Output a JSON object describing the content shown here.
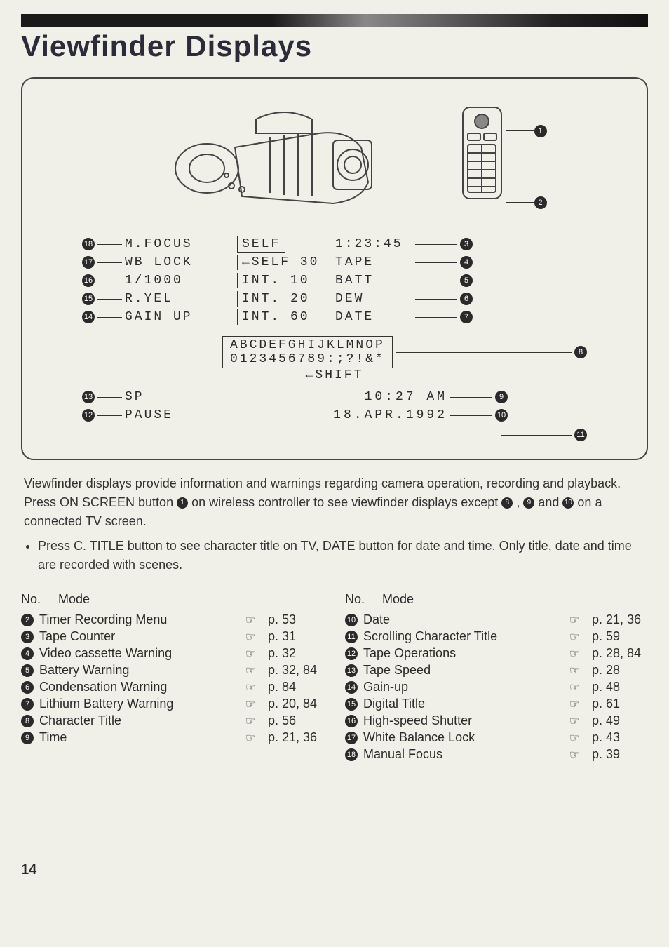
{
  "title": "Viewfinder Displays",
  "osd": {
    "rows": [
      {
        "left_num": "18",
        "left": "M.FOCUS",
        "mid": "SELF",
        "right": "1:23:45",
        "right_num": "3"
      },
      {
        "left_num": "17",
        "left": "WB LOCK",
        "mid": "←SELF 30",
        "right": "TAPE",
        "right_num": "4"
      },
      {
        "left_num": "16",
        "left": "1/1000",
        "mid": "INT. 10",
        "right": "BATT",
        "right_num": "5"
      },
      {
        "left_num": "15",
        "left": "R.YEL",
        "mid": "INT. 20",
        "right": "DEW",
        "right_num": "6"
      },
      {
        "left_num": "14",
        "left": "GAIN UP",
        "mid": "INT. 60",
        "right": "DATE",
        "right_num": "7"
      }
    ],
    "chars1": "ABCDEFGHIJKLMNOP",
    "chars2": "0123456789:;?!&*",
    "shift": "←SHIFT",
    "bottom": [
      {
        "left_num": "13",
        "left": "SP",
        "right": "10:27 AM",
        "right_num": "9"
      },
      {
        "left_num": "12",
        "left": "PAUSE",
        "right": "18.APR.1992",
        "right_num": "10"
      }
    ],
    "char_right_num": "8",
    "bottom_right_num": "11",
    "remote_num_1": "1",
    "remote_num_2": "2"
  },
  "desc": {
    "p1a": "Viewfinder displays provide information and warnings regarding camera operation, recording and playback. Press ON SCREEN button ",
    "p1b": " on wireless controller to see viewfinder displays except ",
    "p1c": ", ",
    "p1d": " and ",
    "p1e": " on a connected TV screen.",
    "b1": "1",
    "b8": "8",
    "b9": "9",
    "b10": "10",
    "p2": "Press C. TITLE button to see character title on TV, DATE button for date and time. Only title, date and time are recorded with scenes."
  },
  "table_head": {
    "no": "No.",
    "mode": "Mode"
  },
  "left_items": [
    {
      "n": "2",
      "label": "Timer Recording Menu",
      "page": "p. 53"
    },
    {
      "n": "3",
      "label": "Tape Counter",
      "page": "p. 31"
    },
    {
      "n": "4",
      "label": "Video cassette Warning",
      "page": "p. 32"
    },
    {
      "n": "5",
      "label": "Battery Warning",
      "page": "p. 32, 84"
    },
    {
      "n": "6",
      "label": "Condensation Warning",
      "page": "p. 84"
    },
    {
      "n": "7",
      "label": "Lithium Battery Warning",
      "page": "p. 20, 84"
    },
    {
      "n": "8",
      "label": "Character Title",
      "page": "p. 56"
    },
    {
      "n": "9",
      "label": "Time",
      "page": "p. 21, 36"
    }
  ],
  "right_items": [
    {
      "n": "10",
      "label": "Date",
      "page": "p. 21, 36"
    },
    {
      "n": "11",
      "label": "Scrolling Character Title",
      "page": "p. 59"
    },
    {
      "n": "12",
      "label": "Tape Operations",
      "page": "p. 28, 84"
    },
    {
      "n": "13",
      "label": "Tape Speed",
      "page": "p. 28"
    },
    {
      "n": "14",
      "label": "Gain-up",
      "page": "p. 48"
    },
    {
      "n": "15",
      "label": "Digital Title",
      "page": "p. 61"
    },
    {
      "n": "16",
      "label": "High-speed Shutter",
      "page": "p. 49"
    },
    {
      "n": "17",
      "label": "White Balance Lock",
      "page": "p. 43"
    },
    {
      "n": "18",
      "label": "Manual Focus",
      "page": "p. 39"
    }
  ],
  "page_number": "14",
  "pointer_glyph": "☞"
}
